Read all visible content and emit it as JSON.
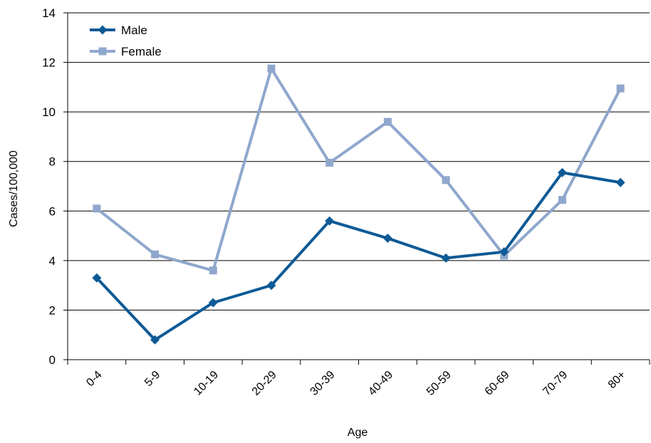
{
  "chart_data": {
    "type": "line",
    "title": "",
    "xlabel": "Age",
    "ylabel": "Cases/100,000",
    "categories": [
      "0-4",
      "5-9",
      "10-19",
      "20-29",
      "30-39",
      "40-49",
      "50-59",
      "60-69",
      "70-79",
      "80+"
    ],
    "series": [
      {
        "name": "Male",
        "color": "#0d5a96",
        "marker": "diamond",
        "values": [
          3.3,
          0.8,
          2.3,
          3.0,
          5.6,
          4.9,
          4.1,
          4.35,
          7.55,
          7.15
        ]
      },
      {
        "name": "Female",
        "color": "#8fa7cc",
        "marker": "square",
        "values": [
          6.1,
          4.25,
          3.6,
          11.75,
          7.95,
          9.6,
          7.25,
          4.2,
          6.45,
          10.95
        ]
      }
    ],
    "ylim": [
      0,
      14
    ],
    "yticks": [
      0,
      2,
      4,
      6,
      8,
      10,
      12,
      14
    ],
    "grid": "horizontal",
    "legend_position": "top-left"
  }
}
